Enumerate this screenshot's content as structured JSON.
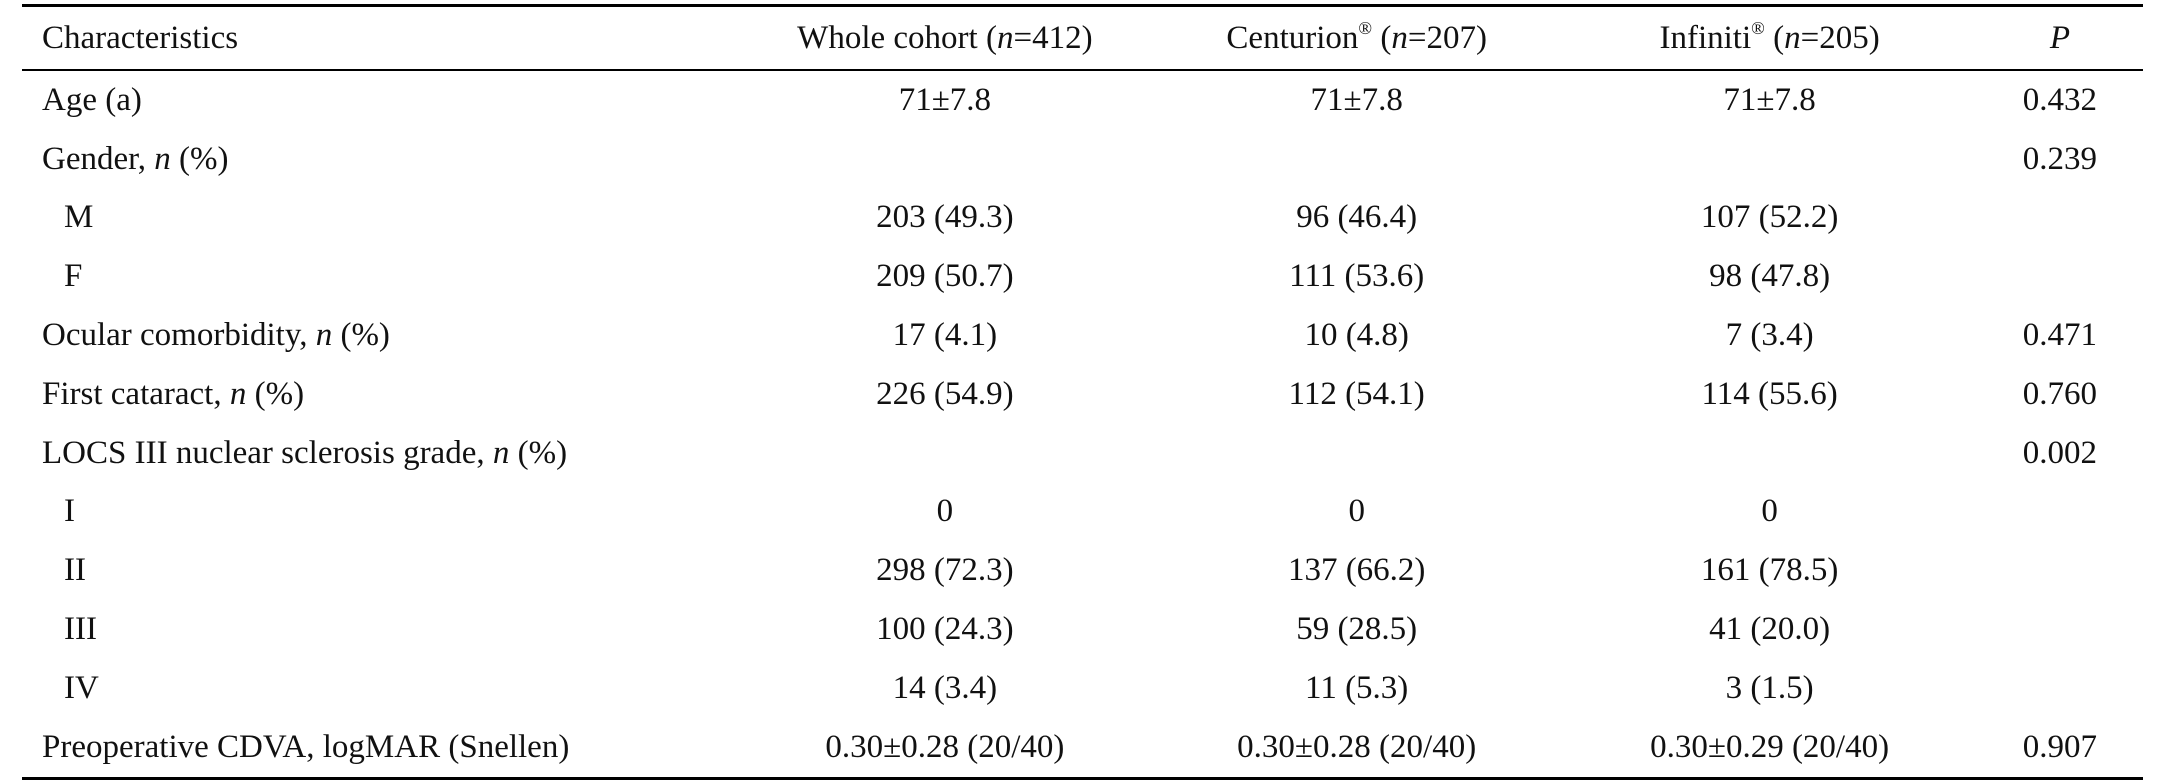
{
  "table": {
    "header": {
      "characteristics": "Characteristics",
      "whole": {
        "name": "Whole cohort",
        "n": "412"
      },
      "centurion": {
        "name": "Centurion",
        "reg": "®",
        "n": "207"
      },
      "infiniti": {
        "name": "Infiniti",
        "reg": "®",
        "n": "205"
      },
      "p": "P"
    },
    "n_symbol": "n",
    "rows": [
      {
        "label": "Age (a)",
        "italic": "",
        "suffix": "",
        "sub": false,
        "whole": "71±7.8",
        "centurion": "71±7.8",
        "infiniti": "71±7.8",
        "p": "0.432"
      },
      {
        "label": "Gender, ",
        "italic": "n",
        "suffix": " (%)",
        "sub": false,
        "whole": "",
        "centurion": "",
        "infiniti": "",
        "p": "0.239"
      },
      {
        "label": "M",
        "italic": "",
        "suffix": "",
        "sub": true,
        "whole": "203 (49.3)",
        "centurion": "96 (46.4)",
        "infiniti": "107 (52.2)",
        "p": ""
      },
      {
        "label": "F",
        "italic": "",
        "suffix": "",
        "sub": true,
        "whole": "209 (50.7)",
        "centurion": "111 (53.6)",
        "infiniti": "98 (47.8)",
        "p": ""
      },
      {
        "label": "Ocular comorbidity, ",
        "italic": "n",
        "suffix": " (%)",
        "sub": false,
        "whole": "17 (4.1)",
        "centurion": "10 (4.8)",
        "infiniti": "7 (3.4)",
        "p": "0.471"
      },
      {
        "label": "First cataract, ",
        "italic": "n",
        "suffix": " (%)",
        "sub": false,
        "whole": "226 (54.9)",
        "centurion": "112 (54.1)",
        "infiniti": "114 (55.6)",
        "p": "0.760"
      },
      {
        "label": "LOCS III nuclear sclerosis grade, ",
        "italic": "n",
        "suffix": " (%)",
        "sub": false,
        "whole": "",
        "centurion": "",
        "infiniti": "",
        "p": "0.002"
      },
      {
        "label": "I",
        "italic": "",
        "suffix": "",
        "sub": true,
        "whole": "0",
        "centurion": "0",
        "infiniti": "0",
        "p": ""
      },
      {
        "label": "II",
        "italic": "",
        "suffix": "",
        "sub": true,
        "whole": "298 (72.3)",
        "centurion": "137 (66.2)",
        "infiniti": "161 (78.5)",
        "p": ""
      },
      {
        "label": "III",
        "italic": "",
        "suffix": "",
        "sub": true,
        "whole": "100 (24.3)",
        "centurion": "59 (28.5)",
        "infiniti": "41 (20.0)",
        "p": ""
      },
      {
        "label": "IV",
        "italic": "",
        "suffix": "",
        "sub": true,
        "whole": "14 (3.4)",
        "centurion": "11 (5.3)",
        "infiniti": "3 (1.5)",
        "p": ""
      },
      {
        "label": "Preoperative CDVA, logMAR (Snellen)",
        "italic": "",
        "suffix": "",
        "sub": false,
        "whole": "0.30±0.28 (20/40)",
        "centurion": "0.30±0.28 (20/40)",
        "infiniti": "0.30±0.29 (20/40)",
        "p": "0.907"
      }
    ]
  }
}
